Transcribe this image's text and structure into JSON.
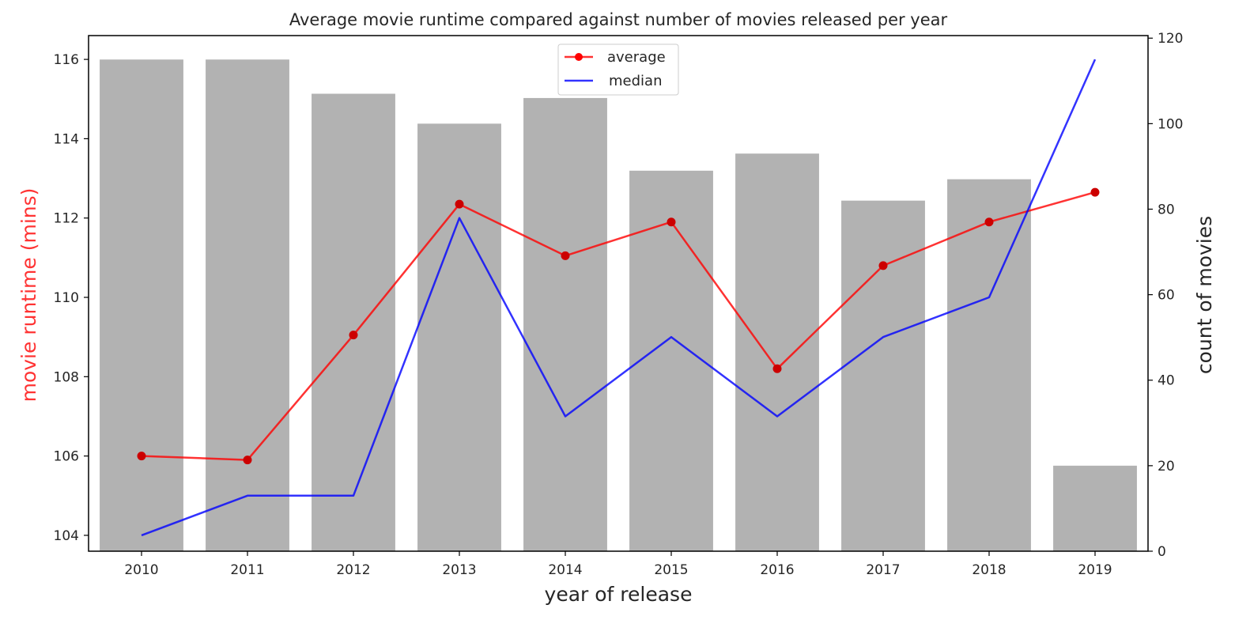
{
  "chart_data": {
    "type": "bar+line",
    "title": "Average movie runtime compared against number of movies released per year",
    "xlabel": "year of release",
    "ylabel_left": "movie runtime (mins)",
    "ylabel_right": "count of movies",
    "categories": [
      "2010",
      "2011",
      "2012",
      "2013",
      "2014",
      "2015",
      "2016",
      "2017",
      "2018",
      "2019"
    ],
    "bars": {
      "axis": "right",
      "color": "#b2b2b2",
      "values": [
        115,
        115,
        107,
        100,
        106,
        89,
        93,
        82,
        87,
        20
      ]
    },
    "series": [
      {
        "name": "average",
        "axis": "left",
        "color": "#ff0000",
        "marker": "circle",
        "values": [
          106.0,
          105.9,
          109.05,
          112.35,
          111.05,
          111.9,
          108.2,
          110.8,
          111.9,
          112.65
        ]
      },
      {
        "name": "median",
        "axis": "left",
        "color": "#0000ff",
        "marker": "none",
        "values": [
          104.0,
          105.0,
          105.0,
          112.0,
          107.0,
          109.0,
          107.0,
          109.0,
          110.0,
          116.0
        ]
      }
    ],
    "ylim_left": [
      103.6,
      116.6
    ],
    "yticks_left": [
      "104",
      "106",
      "108",
      "110",
      "112",
      "114",
      "116"
    ],
    "ylim_right": [
      0,
      120.6
    ],
    "yticks_right": [
      "0",
      "20",
      "40",
      "60",
      "80",
      "100",
      "120"
    ],
    "grid": false,
    "legend_position": "top-center"
  }
}
